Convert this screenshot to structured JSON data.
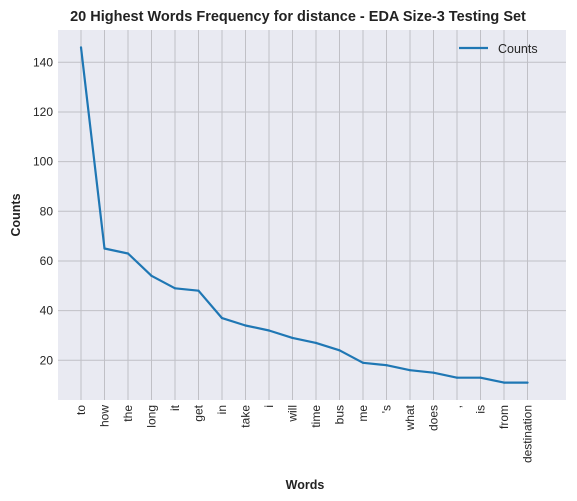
{
  "chart_data": {
    "type": "line",
    "title": "20 Highest Words Frequency for distance - EDA Size-3 Testing Set",
    "xlabel": "Words",
    "ylabel": "Counts",
    "categories": [
      "to",
      "how",
      "the",
      "long",
      "it",
      "get",
      "in",
      "take",
      "i",
      "will",
      "time",
      "bus",
      "me",
      "'s",
      "what",
      "does",
      ",",
      "is",
      "from",
      "destination"
    ],
    "series": [
      {
        "name": "Counts",
        "values": [
          146,
          65,
          63,
          54,
          49,
          48,
          37,
          34,
          32,
          29,
          27,
          24,
          19,
          18,
          16,
          15,
          13,
          13,
          11,
          11
        ]
      }
    ],
    "yticks": [
      20,
      40,
      60,
      80,
      100,
      120,
      140
    ],
    "ylim": [
      4,
      153
    ],
    "grid": true,
    "legend_position": "top-right",
    "colors": {
      "line": "#1f77b4",
      "plot_bg": "#e9eaf2",
      "grid": "#c0c0c6"
    }
  }
}
